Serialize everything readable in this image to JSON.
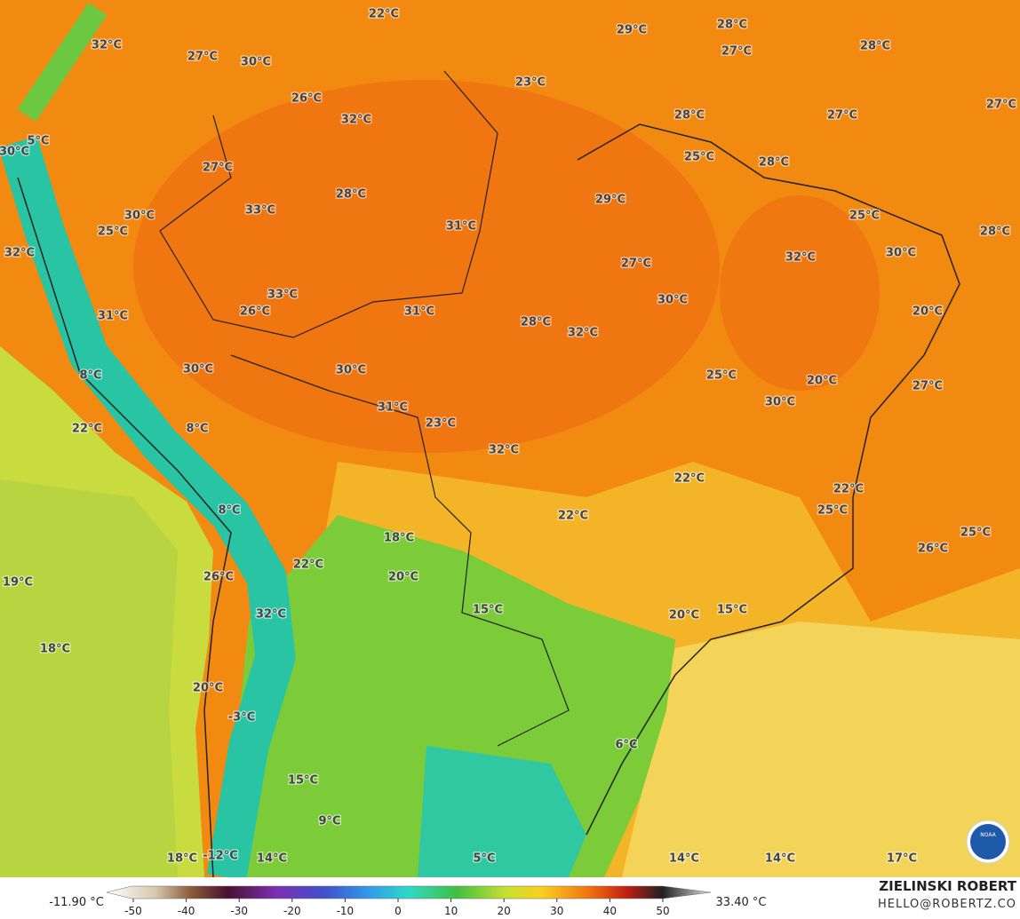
{
  "map": {
    "labels": [
      "22°C",
      "29°C",
      "28°C",
      "27°C",
      "28°C",
      "32°C",
      "27°C",
      "30°C",
      "26°C",
      "23°C",
      "28°C",
      "27°C",
      "27°C",
      "32°C",
      "5°C",
      "30°C",
      "25°C",
      "28°C",
      "27°C",
      "28°C",
      "29°C",
      "33°C",
      "30°C",
      "25°C",
      "31°C",
      "25°C",
      "28°C",
      "32°C",
      "32°C",
      "30°C",
      "27°C",
      "33°C",
      "30°C",
      "26°C",
      "31°C",
      "20°C",
      "31°C",
      "28°C",
      "32°C",
      "30°C",
      "30°C",
      "25°C",
      "8°C",
      "20°C",
      "27°C",
      "30°C",
      "31°C",
      "23°C",
      "8°C",
      "22°C",
      "32°C",
      "22°C",
      "22°C",
      "8°C",
      "22°C",
      "25°C",
      "25°C",
      "18°C",
      "26°C",
      "22°C",
      "26°C",
      "20°C",
      "19°C",
      "15°C",
      "15°C",
      "20°C",
      "32°C",
      "18°C",
      "20°C",
      "-3°C",
      "6°C",
      "15°C",
      "9°C",
      "18°C",
      "-12°C",
      "14°C",
      "5°C",
      "14°C",
      "14°C",
      "17°C"
    ]
  },
  "colorbar": {
    "min_label": "-11.90 °C",
    "max_label": "33.40 °C",
    "ticks": [
      -50,
      -40,
      -30,
      -20,
      -10,
      0,
      10,
      20,
      30,
      40,
      50
    ]
  },
  "credits": {
    "author": "ZIELINSKI ROBERT",
    "email": "HELLO@ROBERTZ.CO",
    "logo": "NOAA"
  }
}
